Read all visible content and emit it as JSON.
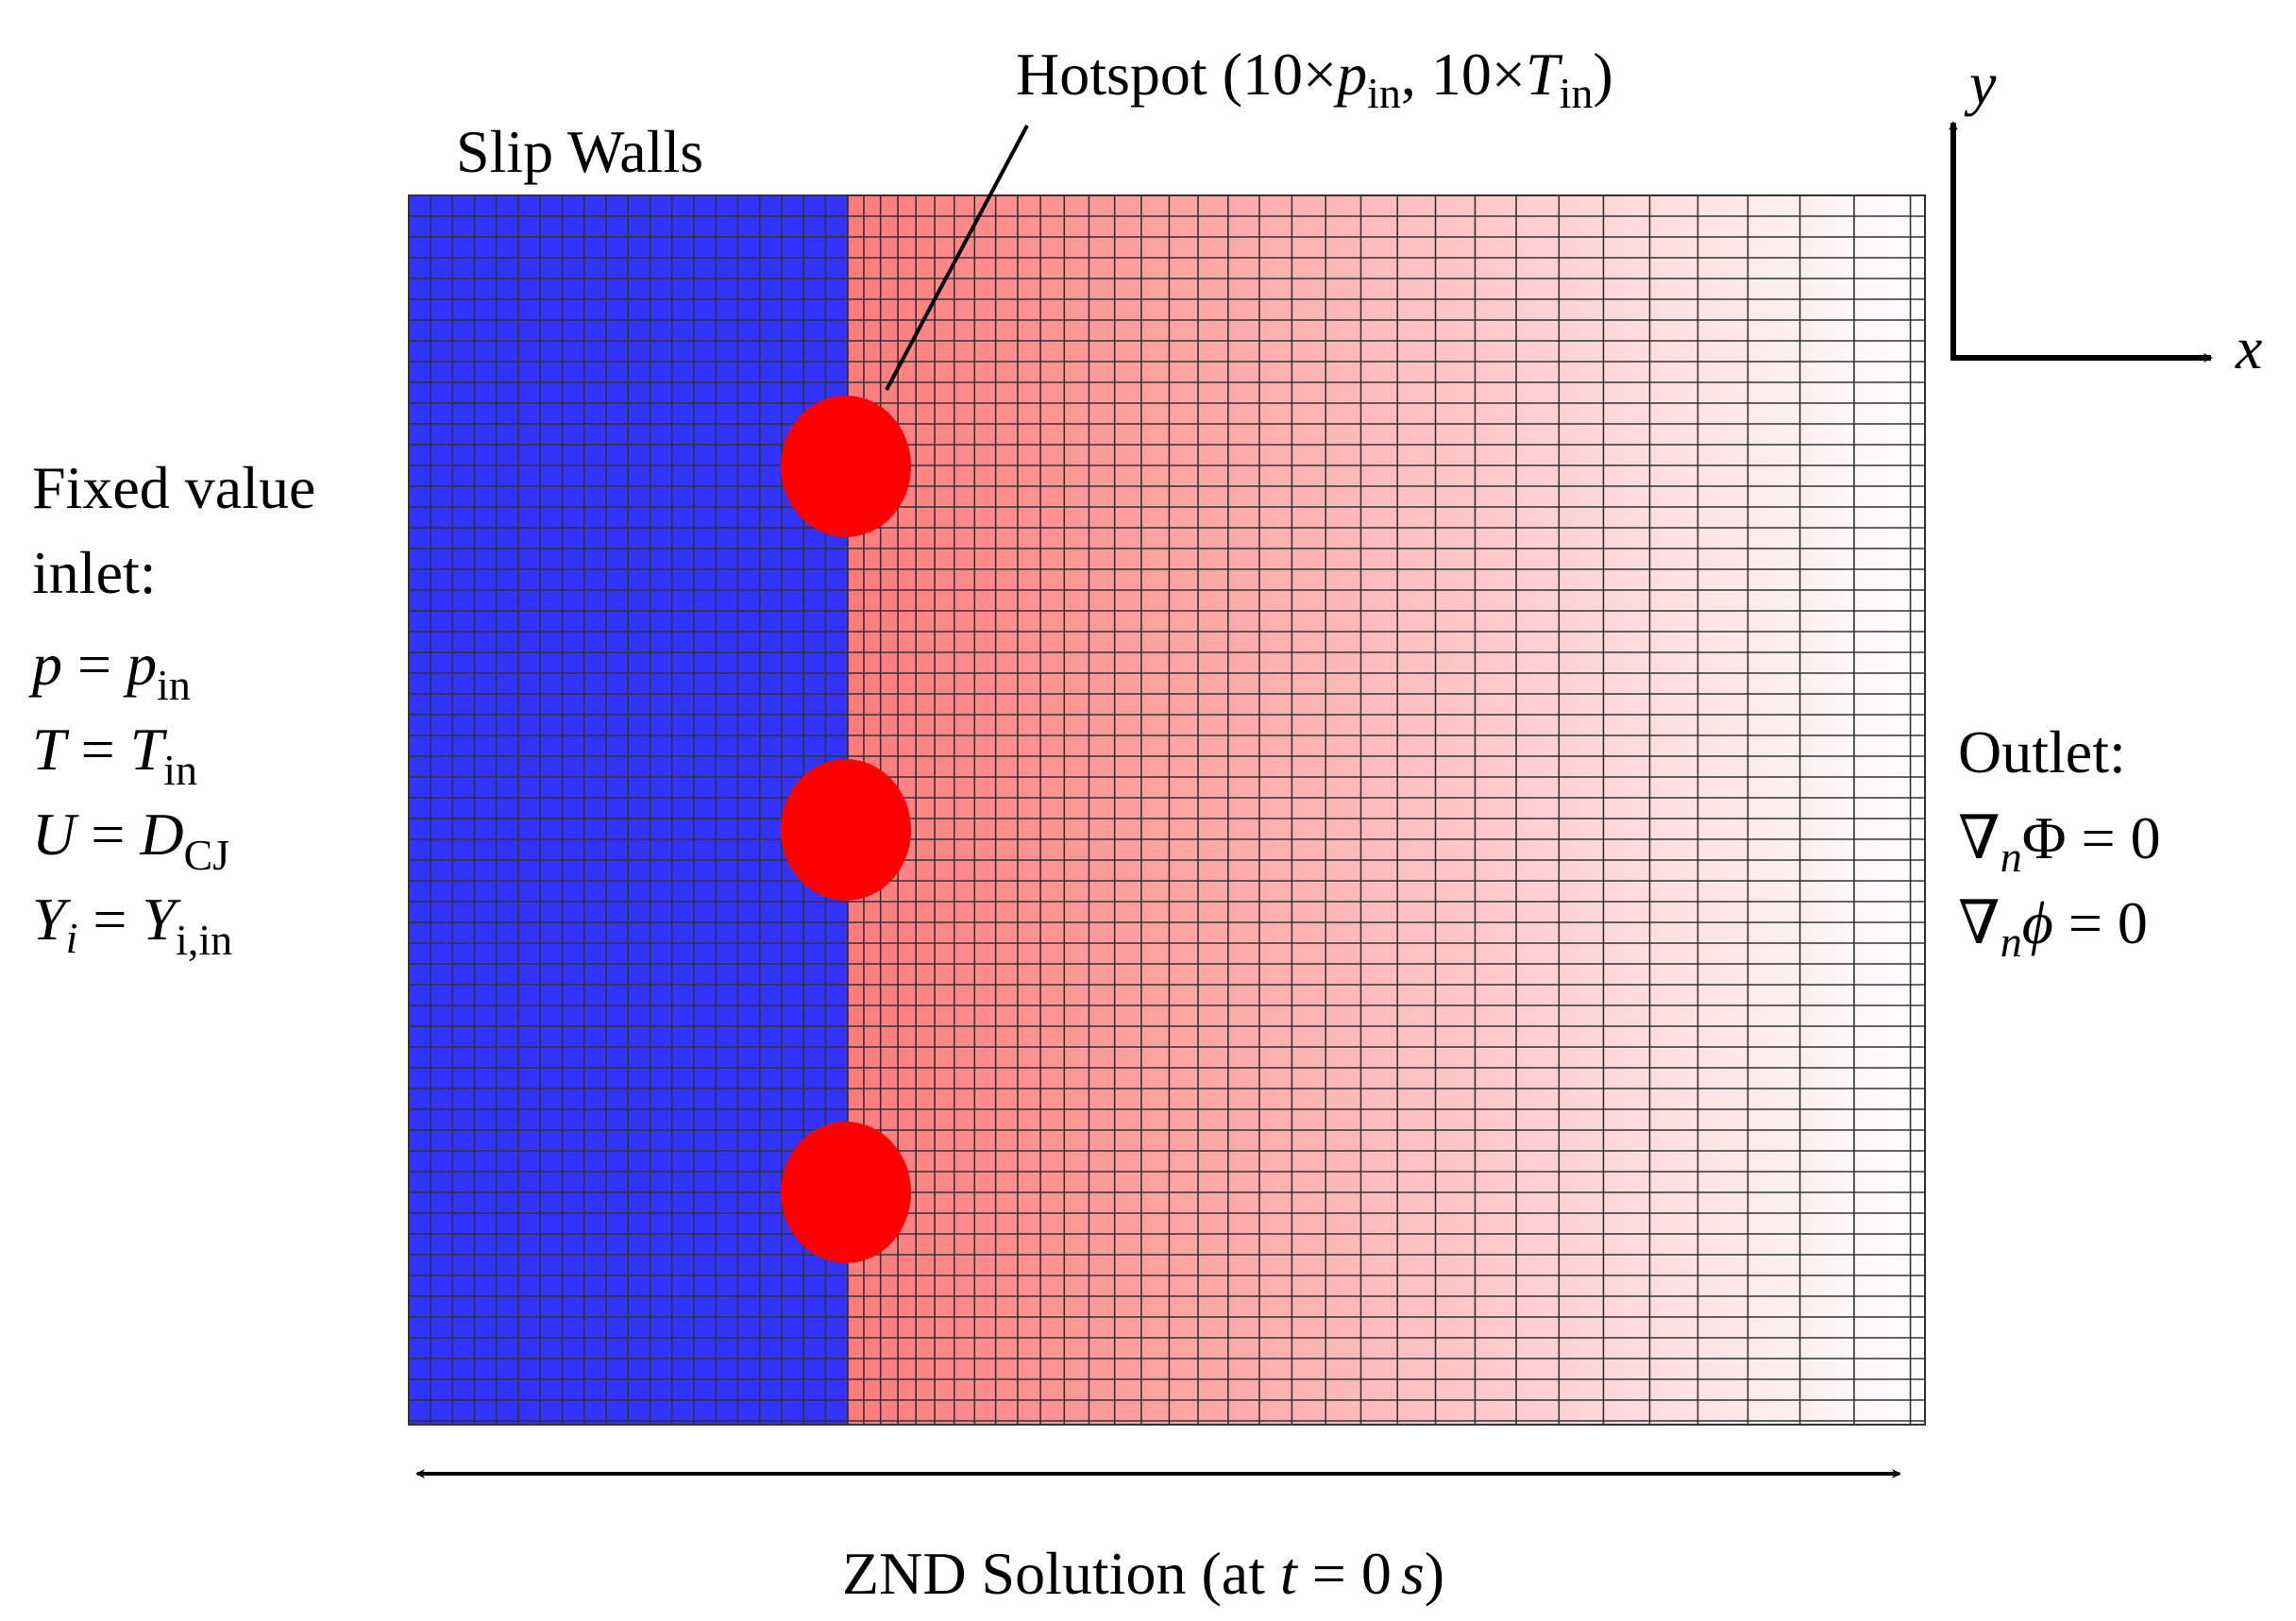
{
  "labels": {
    "slip_walls": "Slip Walls",
    "hotspot": {
      "prefix": "Hotspot (10×",
      "p": "p",
      "p_sub": "in",
      "mid": ", 10×",
      "T": "T",
      "T_sub": "in",
      "suffix": ")"
    },
    "inlet": {
      "title1": "Fixed value",
      "title2": "inlet:",
      "conditions": [
        {
          "lhs": "p",
          "lhs_sub": "",
          "eq": " = ",
          "rhs": "p",
          "rhs_sub": "in"
        },
        {
          "lhs": "T",
          "lhs_sub": "",
          "eq": " = ",
          "rhs": "T",
          "rhs_sub": "in"
        },
        {
          "lhs": "U",
          "lhs_sub": "",
          "eq": " = ",
          "rhs": "D",
          "rhs_sub": "CJ"
        },
        {
          "lhs": "Y",
          "lhs_sub": "i",
          "eq": " = ",
          "rhs": "Y",
          "rhs_sub": "i,in"
        }
      ]
    },
    "outlet": {
      "title": "Outlet:",
      "conditions": [
        {
          "op": "∇",
          "sub": "n",
          "var": "Φ",
          "eq": " = 0"
        },
        {
          "op": "∇",
          "sub": "n",
          "var": "ϕ",
          "eq": " = 0"
        }
      ]
    },
    "axis_x": "x",
    "axis_y": "y",
    "znd": {
      "prefix": "ZND Solution (at ",
      "t": "t",
      "eq": " = 0",
      "s": "s",
      "suffix": ")"
    }
  }
}
